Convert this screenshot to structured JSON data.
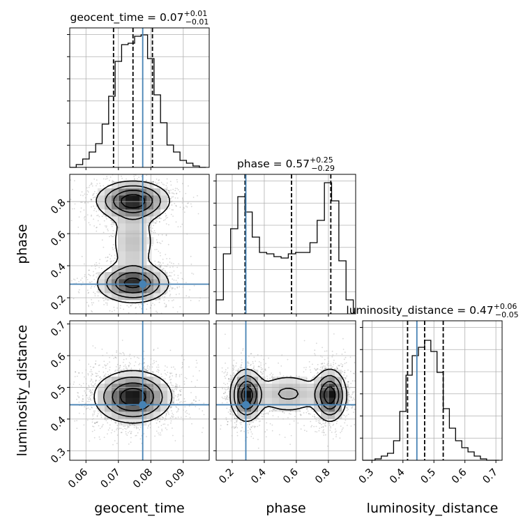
{
  "chart_data": {
    "type": "corner",
    "parameters": [
      "geocent_time",
      "phase",
      "luminosity_distance"
    ],
    "truths": {
      "geocent_time": 0.0775,
      "phase": 0.285,
      "luminosity_distance": 0.445
    },
    "colors": {
      "truth": "#4682b4",
      "hist": "#000000",
      "grid": "#b0b0b0"
    },
    "grid": true,
    "diagonal": [
      {
        "param": "geocent_time",
        "title_main": "geocent_time = 0.07",
        "title_sup": "+0.01",
        "title_sub": "−0.01",
        "xlim": [
          0.055,
          0.098
        ],
        "ylim": [
          0,
          1.0
        ],
        "quantiles": [
          0.0685,
          0.0745,
          0.0805
        ],
        "bin_edges": [
          0.055,
          0.057,
          0.059,
          0.061,
          0.063,
          0.065,
          0.067,
          0.069,
          0.071,
          0.073,
          0.075,
          0.077,
          0.079,
          0.081,
          0.083,
          0.085,
          0.087,
          0.089,
          0.091,
          0.093,
          0.095,
          0.097
        ],
        "counts": [
          0.0,
          0.02,
          0.06,
          0.11,
          0.17,
          0.31,
          0.51,
          0.76,
          0.88,
          0.89,
          0.94,
          0.95,
          0.78,
          0.52,
          0.32,
          0.16,
          0.11,
          0.05,
          0.03,
          0.01,
          0.0
        ]
      },
      {
        "param": "phase",
        "title_main": "phase = 0.57",
        "title_sup": "+0.25",
        "title_sub": "−0.29",
        "xlim": [
          0.1,
          0.97
        ],
        "ylim": [
          0,
          1.0
        ],
        "quantiles": [
          0.28,
          0.57,
          0.815
        ],
        "bin_edges": [
          0.1,
          0.145,
          0.19,
          0.235,
          0.28,
          0.325,
          0.37,
          0.415,
          0.46,
          0.505,
          0.55,
          0.595,
          0.64,
          0.685,
          0.73,
          0.775,
          0.82,
          0.865,
          0.91,
          0.955
        ],
        "counts": [
          0.1,
          0.43,
          0.61,
          0.84,
          0.73,
          0.55,
          0.44,
          0.43,
          0.41,
          0.4,
          0.43,
          0.44,
          0.44,
          0.51,
          0.67,
          0.94,
          0.81,
          0.38,
          0.1
        ]
      },
      {
        "param": "luminosity_distance",
        "title_main": "luminosity_distance = 0.47",
        "title_sup": "+0.06",
        "title_sub": "−0.05",
        "xlim": [
          0.27,
          0.72
        ],
        "ylim": [
          0,
          1.0
        ],
        "quantiles": [
          0.415,
          0.47,
          0.53
        ],
        "bin_edges": [
          0.27,
          0.29,
          0.31,
          0.33,
          0.35,
          0.37,
          0.39,
          0.41,
          0.43,
          0.45,
          0.47,
          0.49,
          0.51,
          0.53,
          0.55,
          0.57,
          0.59,
          0.61,
          0.63,
          0.65,
          0.67,
          0.69,
          0.71
        ],
        "counts": [
          0.0,
          0.0,
          0.01,
          0.03,
          0.05,
          0.14,
          0.35,
          0.61,
          0.75,
          0.81,
          0.86,
          0.78,
          0.63,
          0.37,
          0.23,
          0.14,
          0.09,
          0.06,
          0.03,
          0.01,
          0.0,
          0.0
        ]
      }
    ],
    "axes": {
      "geocent_time": {
        "ticks": [
          0.06,
          0.07,
          0.08,
          0.09
        ],
        "tick_labels": [
          "0.06",
          "0.07",
          "0.08",
          "0.09"
        ],
        "label": "geocent_time"
      },
      "phase": {
        "ticks": [
          0.2,
          0.4,
          0.6,
          0.8
        ],
        "tick_labels": [
          "0.2",
          "0.4",
          "0.6",
          "0.8"
        ],
        "label": "phase"
      },
      "luminosity_distance": {
        "ticks": [
          0.3,
          0.4,
          0.5,
          0.6,
          0.7
        ],
        "tick_labels": [
          "0.3",
          "0.4",
          "0.5",
          "0.6",
          "0.7"
        ],
        "label": "luminosity_distance"
      }
    },
    "pairs": [
      {
        "x": "geocent_time",
        "y": "phase",
        "xlim": [
          0.055,
          0.098
        ],
        "ylim": [
          0.1,
          0.97
        ],
        "modes": [
          {
            "x": 0.0745,
            "y": 0.805,
            "sx": 0.0055,
            "sy": 0.06,
            "w": 1.0
          },
          {
            "x": 0.0745,
            "y": 0.29,
            "sx": 0.0055,
            "sy": 0.06,
            "w": 0.9
          },
          {
            "x": 0.0745,
            "y": 0.55,
            "sx": 0.004,
            "sy": 0.12,
            "w": 0.3
          }
        ]
      },
      {
        "x": "geocent_time",
        "y": "luminosity_distance",
        "xlim": [
          0.055,
          0.098
        ],
        "ylim": [
          0.27,
          0.71
        ],
        "modes": [
          {
            "x": 0.0745,
            "y": 0.47,
            "sx": 0.0058,
            "sy": 0.04,
            "w": 1.0
          }
        ]
      },
      {
        "x": "phase",
        "y": "luminosity_distance",
        "xlim": [
          0.1,
          0.97
        ],
        "ylim": [
          0.27,
          0.71
        ],
        "modes": [
          {
            "x": 0.29,
            "y": 0.475,
            "sx": 0.05,
            "sy": 0.04,
            "w": 1.0
          },
          {
            "x": 0.81,
            "y": 0.475,
            "sx": 0.05,
            "sy": 0.04,
            "w": 1.0
          },
          {
            "x": 0.55,
            "y": 0.48,
            "sx": 0.12,
            "sy": 0.035,
            "w": 0.35
          }
        ]
      }
    ]
  }
}
